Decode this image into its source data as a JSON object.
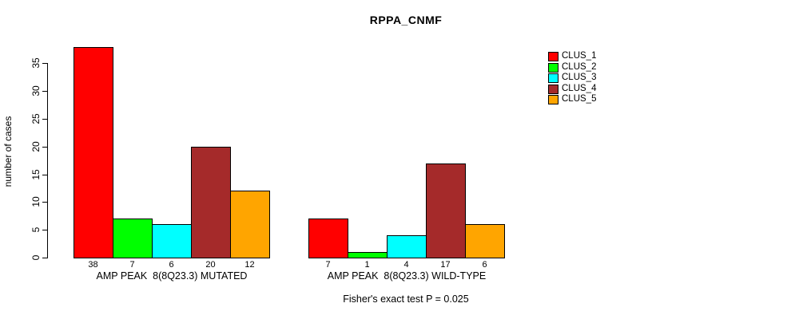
{
  "chart_data": {
    "type": "bar",
    "title": "RPPA_CNMF",
    "ylabel": "number of cases",
    "xlabel": "",
    "ylim": [
      0,
      38
    ],
    "y_ticks": [
      0,
      5,
      10,
      15,
      20,
      25,
      30,
      35
    ],
    "grid": false,
    "legend_position": "top-right",
    "categories": [
      "AMP PEAK  8(8Q23.3) MUTATED",
      "AMP PEAK  8(8Q23.3) WILD-TYPE"
    ],
    "series": [
      {
        "name": "CLUS_1",
        "color": "#ff0000",
        "values": [
          38,
          7
        ]
      },
      {
        "name": "CLUS_2",
        "color": "#00ff00",
        "values": [
          7,
          1
        ]
      },
      {
        "name": "CLUS_3",
        "color": "#00ffff",
        "values": [
          6,
          4
        ]
      },
      {
        "name": "CLUS_4",
        "color": "#a52a2a",
        "values": [
          20,
          17
        ]
      },
      {
        "name": "CLUS_5",
        "color": "#ffa500",
        "values": [
          12,
          6
        ]
      }
    ],
    "annotation": "Fisher's exact test P = 0.025"
  }
}
